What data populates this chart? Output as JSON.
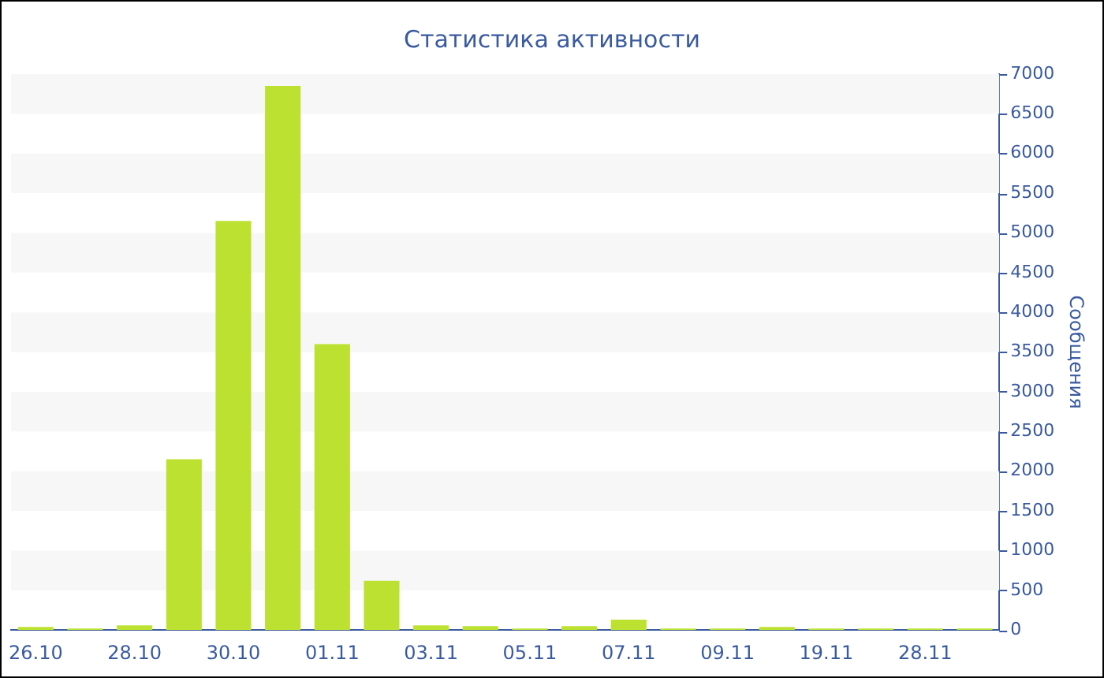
{
  "chart_data": {
    "type": "bar",
    "title": "Статистика активности",
    "ylabel": "Сообщения",
    "categories": [
      "26.10",
      null,
      "28.10",
      null,
      "30.10",
      null,
      "01.11",
      null,
      "03.11",
      null,
      "05.11",
      null,
      "07.11",
      null,
      "09.11",
      null,
      "19.11",
      null,
      "28.11",
      null
    ],
    "values": [
      40,
      20,
      60,
      2150,
      5150,
      6850,
      3600,
      620,
      60,
      50,
      20,
      50,
      130,
      20,
      20,
      40,
      20,
      20,
      20,
      20
    ],
    "color": "#bde130",
    "ylim": [
      0,
      7000
    ],
    "yticks": [
      0,
      500,
      1000,
      1500,
      2000,
      2500,
      3000,
      3500,
      4000,
      4500,
      5000,
      5500,
      6000,
      6500,
      7000
    ],
    "grid": false,
    "legend": false,
    "bands": [
      {
        "axis": "y",
        "from": 500,
        "to": 1000,
        "color": "#f7f7f7"
      },
      {
        "axis": "y",
        "from": 1500,
        "to": 2000,
        "color": "#f7f7f7"
      },
      {
        "axis": "y",
        "from": 2500,
        "to": 3000,
        "color": "#f7f7f7"
      },
      {
        "axis": "y",
        "from": 3500,
        "to": 4000,
        "color": "#f7f7f7"
      },
      {
        "axis": "y",
        "from": 4500,
        "to": 5000,
        "color": "#f7f7f7"
      },
      {
        "axis": "y",
        "from": 5500,
        "to": 6000,
        "color": "#f7f7f7"
      },
      {
        "axis": "y",
        "from": 6500,
        "to": 7000,
        "color": "#f7f7f7"
      }
    ]
  }
}
